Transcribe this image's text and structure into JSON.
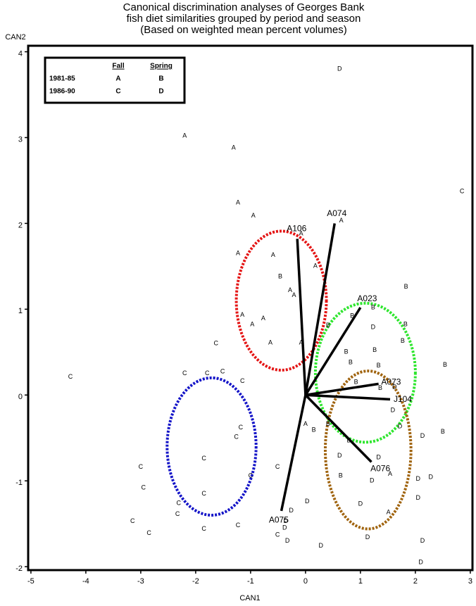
{
  "chart_data": {
    "type": "scatter",
    "title": [
      "Canonical discrimination analyses of Georges Bank",
      "fish diet similarities grouped by period and season",
      "(Based on weighted mean percent volumes)"
    ],
    "x_label": "CAN1",
    "y_label": "CAN2",
    "xlim": [
      -5.05,
      3.04
    ],
    "ylim": [
      -2.04,
      4.07
    ],
    "xticks": [
      -5,
      -4,
      -3,
      -2,
      -1,
      0,
      1,
      2,
      3
    ],
    "yticks": [
      -2,
      -1,
      0,
      1,
      2,
      3,
      4
    ],
    "legend": {
      "headers": [
        "Fall",
        "Spring"
      ],
      "rows": [
        "1981-85",
        "1986-90"
      ]
    },
    "series": [
      {
        "name": "A",
        "color": "#000000",
        "x": [
          -2.2,
          -1.31,
          -1.23,
          -0.95,
          0.65,
          -0.08,
          -1.23,
          -0.59,
          0.18,
          -0.28,
          -0.21,
          -1.15,
          -0.77,
          -0.97,
          -0.64,
          -0.08,
          0,
          1.54,
          1.51
        ],
        "y": [
          3.02,
          2.88,
          2.24,
          2.09,
          2.03,
          1.88,
          1.65,
          1.63,
          1.5,
          1.22,
          1.16,
          0.93,
          0.89,
          0.82,
          0.61,
          0.61,
          -0.34,
          -0.92,
          -1.37
        ]
      },
      {
        "name": "B",
        "color": "#000000",
        "x": [
          -0.46,
          1.83,
          1.23,
          0.85,
          0.41,
          1.82,
          1.77,
          0.74,
          1.26,
          0.82,
          1.33,
          2.54,
          0.92,
          1.36,
          0.15,
          0.79,
          2.5,
          0.64,
          0.41
        ],
        "y": [
          1.38,
          1.26,
          1.02,
          0.92,
          0.81,
          0.82,
          0.63,
          0.5,
          0.52,
          0.38,
          0.34,
          0.35,
          0.15,
          0.08,
          -0.41,
          -0.53,
          -0.43,
          -0.94,
          -0.34
        ]
      },
      {
        "name": "C",
        "color": "#000000",
        "x": [
          -4.28,
          -1.63,
          -2.2,
          -1.79,
          -1.51,
          -1.15,
          2.85,
          -1.18,
          -1.26,
          -1.85,
          -3.0,
          -2.95,
          -0.51,
          -1.0,
          -1.85,
          -2.31,
          -2.33,
          -3.15,
          -2.85,
          -1.85,
          -1.23,
          -0.51
        ],
        "y": [
          0.21,
          0.6,
          0.25,
          0.25,
          0.27,
          0.16,
          2.37,
          -0.38,
          -0.49,
          -0.74,
          -0.84,
          -1.08,
          -0.84,
          -0.94,
          -1.15,
          -1.26,
          -1.39,
          -1.47,
          -1.61,
          -1.56,
          -1.52,
          -1.63
        ]
      },
      {
        "name": "D",
        "color": "#000000",
        "x": [
          0.62,
          1.23,
          1.62,
          1.59,
          1.72,
          2.13,
          1.33,
          0.62,
          1.21,
          2.05,
          2.28,
          2.05,
          0.03,
          1.0,
          -0.26,
          -0.36,
          -0.38,
          -0.33,
          0.28,
          1.13,
          2.13,
          2.1
        ],
        "y": [
          3.8,
          0.79,
          0.09,
          -0.18,
          -0.37,
          -0.48,
          -0.73,
          -0.71,
          -1.0,
          -0.98,
          -0.96,
          -1.2,
          -1.24,
          -1.27,
          -1.35,
          -1.47,
          -1.55,
          -1.7,
          -1.76,
          -1.66,
          -1.7,
          -1.95
        ]
      }
    ],
    "vectors": [
      {
        "label": "A074",
        "x": 0.53,
        "y": 2.0
      },
      {
        "label": "A106",
        "x": -0.15,
        "y": 1.82
      },
      {
        "label": "A023",
        "x": 1.0,
        "y": 1.02
      },
      {
        "label": "A073",
        "x": 1.33,
        "y": 0.13
      },
      {
        "label": "J104",
        "x": 1.54,
        "y": -0.05
      },
      {
        "label": "A076",
        "x": 1.2,
        "y": -0.78
      },
      {
        "label": "A075",
        "x": -0.44,
        "y": -1.35
      }
    ],
    "ellipses": [
      {
        "cx": -0.44,
        "cy": 1.1,
        "rx": 0.82,
        "ry": 0.81,
        "color": "#e41414"
      },
      {
        "cx": 1.09,
        "cy": 0.26,
        "rx": 0.91,
        "ry": 0.81,
        "color": "#2ee62e"
      },
      {
        "cx": -1.71,
        "cy": -0.6,
        "rx": 0.81,
        "ry": 0.8,
        "color": "#1414c8"
      },
      {
        "cx": 1.14,
        "cy": -0.64,
        "rx": 0.78,
        "ry": 0.92,
        "color": "#a0640f"
      }
    ]
  }
}
